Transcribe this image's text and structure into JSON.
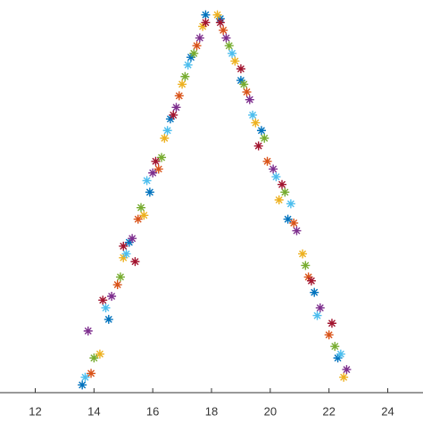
{
  "chart_data": {
    "type": "scatter",
    "xlim": [
      10.8,
      25.2
    ],
    "xticks": [
      12,
      14,
      16,
      18,
      20,
      22,
      24
    ],
    "ylim": [
      0,
      1
    ],
    "series": [
      {
        "color": "#0072BD",
        "x": [
          13.6,
          14.5,
          15.2,
          15.9,
          16.6,
          17.3,
          17.8,
          18.3,
          19.0,
          19.7,
          20.6,
          21.5,
          22.3
        ],
        "values": [
          0.02,
          0.19,
          0.39,
          0.52,
          0.71,
          0.87,
          0.98,
          0.97,
          0.81,
          0.68,
          0.45,
          0.26,
          0.09
        ]
      },
      {
        "color": "#D95319",
        "x": [
          13.9,
          14.8,
          15.5,
          16.2,
          16.9,
          17.5,
          18.4,
          19.2,
          19.9,
          20.8,
          21.3,
          22.0
        ],
        "values": [
          0.05,
          0.28,
          0.45,
          0.58,
          0.77,
          0.9,
          0.94,
          0.78,
          0.6,
          0.44,
          0.3,
          0.15
        ]
      },
      {
        "color": "#EDB120",
        "x": [
          14.2,
          15.0,
          15.7,
          16.4,
          17.0,
          17.7,
          18.2,
          18.8,
          19.5,
          20.3,
          21.1,
          22.5
        ],
        "values": [
          0.1,
          0.35,
          0.46,
          0.66,
          0.8,
          0.95,
          0.98,
          0.86,
          0.7,
          0.5,
          0.36,
          0.04
        ]
      },
      {
        "color": "#7E2F8E",
        "x": [
          13.8,
          14.6,
          15.3,
          16.0,
          16.8,
          17.6,
          18.5,
          19.3,
          20.1,
          20.9,
          21.7,
          22.6
        ],
        "values": [
          0.16,
          0.25,
          0.4,
          0.57,
          0.74,
          0.92,
          0.92,
          0.76,
          0.58,
          0.42,
          0.22,
          0.06
        ]
      },
      {
        "color": "#77AC30",
        "x": [
          14.0,
          14.9,
          15.6,
          16.3,
          17.1,
          17.4,
          18.6,
          19.1,
          19.8,
          20.5,
          21.2,
          22.2
        ],
        "values": [
          0.09,
          0.3,
          0.48,
          0.61,
          0.82,
          0.88,
          0.9,
          0.8,
          0.66,
          0.52,
          0.33,
          0.12
        ]
      },
      {
        "color": "#4DBEEE",
        "x": [
          13.7,
          14.4,
          15.1,
          15.8,
          16.5,
          17.2,
          18.7,
          19.4,
          20.2,
          20.7,
          21.6,
          22.4
        ],
        "values": [
          0.04,
          0.22,
          0.36,
          0.55,
          0.68,
          0.85,
          0.88,
          0.72,
          0.56,
          0.49,
          0.2,
          0.1
        ]
      },
      {
        "color": "#A2142F",
        "x": [
          14.3,
          15.0,
          15.4,
          16.1,
          16.7,
          17.8,
          18.3,
          19.0,
          19.6,
          20.4,
          21.4,
          22.1
        ],
        "values": [
          0.24,
          0.38,
          0.34,
          0.6,
          0.72,
          0.96,
          0.96,
          0.84,
          0.64,
          0.54,
          0.29,
          0.18
        ]
      }
    ]
  }
}
